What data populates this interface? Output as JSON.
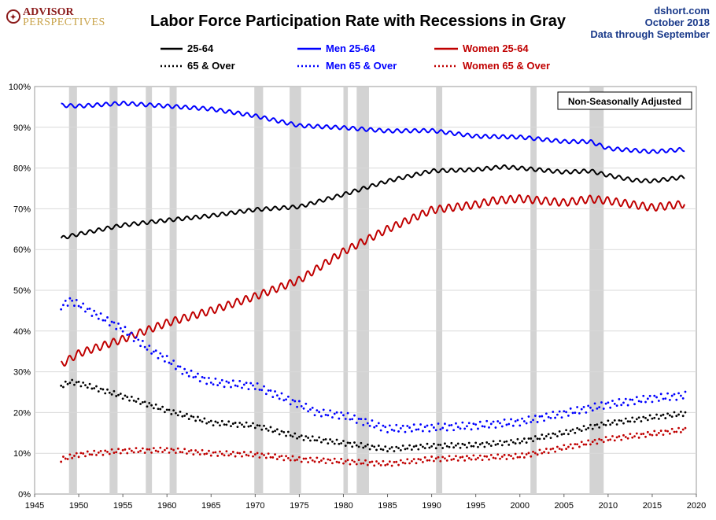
{
  "logo": {
    "line1": "ADVISOR",
    "line2": "PERSPECTIVES"
  },
  "header": {
    "title": "Labor Force Participation Rate with Recessions in Gray",
    "source_line1": "dshort.com",
    "source_line2": "October 2018",
    "source_line3": "Data through  September"
  },
  "note": "Non-Seasonally Adjusted",
  "colors": {
    "black": "#000000",
    "blue": "#0000ff",
    "red": "#c00000",
    "recession": "#d3d3d3",
    "grid": "#d9d9d9"
  },
  "chart_data": {
    "type": "line",
    "xlim": [
      1945,
      2020
    ],
    "ylim": [
      0,
      100
    ],
    "x_ticks": [
      "1945",
      "1950",
      "1955",
      "1960",
      "1965",
      "1970",
      "1975",
      "1980",
      "1985",
      "1990",
      "1995",
      "2000",
      "2005",
      "2010",
      "2015",
      "2020"
    ],
    "y_ticks": [
      "0%",
      "10%",
      "20%",
      "30%",
      "40%",
      "50%",
      "60%",
      "70%",
      "80%",
      "90%",
      "100%"
    ],
    "grid": true,
    "legend_position": "top",
    "recessions": [
      [
        1948.9,
        1949.8
      ],
      [
        1953.5,
        1954.4
      ],
      [
        1957.6,
        1958.3
      ],
      [
        1960.3,
        1961.1
      ],
      [
        1969.9,
        1970.9
      ],
      [
        1973.9,
        1975.2
      ],
      [
        1980.0,
        1980.5
      ],
      [
        1981.5,
        1982.9
      ],
      [
        1990.5,
        1991.2
      ],
      [
        2001.2,
        2001.9
      ],
      [
        2007.9,
        2009.5
      ]
    ],
    "series": [
      {
        "name": "25-64",
        "color": "#000000",
        "style": "solid",
        "points": [
          [
            1948,
            62.8
          ],
          [
            1950,
            63.8
          ],
          [
            1955,
            66
          ],
          [
            1960,
            67.2
          ],
          [
            1965,
            68.3
          ],
          [
            1970,
            69.8
          ],
          [
            1975,
            70.5
          ],
          [
            1980,
            73.5
          ],
          [
            1985,
            76.8
          ],
          [
            1990,
            79.3
          ],
          [
            1995,
            79.6
          ],
          [
            1998,
            80.3
          ],
          [
            2000,
            80
          ],
          [
            2005,
            79
          ],
          [
            2008,
            79.3
          ],
          [
            2010,
            78.2
          ],
          [
            2013,
            77
          ],
          [
            2015,
            76.8
          ],
          [
            2018.7,
            77.8
          ]
        ]
      },
      {
        "name": "Men 25-64",
        "color": "#0000ff",
        "style": "solid",
        "points": [
          [
            1948,
            95.4
          ],
          [
            1950,
            95.2
          ],
          [
            1955,
            95.9
          ],
          [
            1960,
            95.2
          ],
          [
            1965,
            94.5
          ],
          [
            1970,
            92.8
          ],
          [
            1975,
            90.4
          ],
          [
            1980,
            89.9
          ],
          [
            1985,
            89.1
          ],
          [
            1990,
            89.2
          ],
          [
            1995,
            87.8
          ],
          [
            2000,
            87.6
          ],
          [
            2005,
            86.5
          ],
          [
            2008,
            86.5
          ],
          [
            2010,
            84.8
          ],
          [
            2015,
            84
          ],
          [
            2018.7,
            84.6
          ]
        ]
      },
      {
        "name": "Women 25-64",
        "color": "#c00000",
        "style": "solid",
        "points": [
          [
            1948,
            31.8
          ],
          [
            1950,
            34.5
          ],
          [
            1955,
            38
          ],
          [
            1960,
            42
          ],
          [
            1965,
            45
          ],
          [
            1970,
            48.5
          ],
          [
            1975,
            52.5
          ],
          [
            1980,
            59.5
          ],
          [
            1985,
            65
          ],
          [
            1990,
            69.7
          ],
          [
            1995,
            71
          ],
          [
            1997,
            72
          ],
          [
            2000,
            72.5
          ],
          [
            2005,
            71.5
          ],
          [
            2008,
            72.4
          ],
          [
            2010,
            72
          ],
          [
            2015,
            70.3
          ],
          [
            2018.7,
            71.2
          ]
        ]
      },
      {
        "name": "65 & Over",
        "color": "#000000",
        "style": "dotted",
        "points": [
          [
            1948,
            26.5
          ],
          [
            1949,
            27.5
          ],
          [
            1950,
            27.2
          ],
          [
            1955,
            24
          ],
          [
            1960,
            20.5
          ],
          [
            1965,
            17.5
          ],
          [
            1970,
            16.8
          ],
          [
            1975,
            14
          ],
          [
            1980,
            12.5
          ],
          [
            1985,
            11
          ],
          [
            1990,
            11.8
          ],
          [
            1995,
            12
          ],
          [
            2000,
            12.9
          ],
          [
            2005,
            15
          ],
          [
            2010,
            17.4
          ],
          [
            2015,
            18.8
          ],
          [
            2018.7,
            19.8
          ]
        ]
      },
      {
        "name": "Men 65 & Over",
        "color": "#0000ff",
        "style": "dotted",
        "points": [
          [
            1948,
            46
          ],
          [
            1949,
            47.5
          ],
          [
            1950,
            46.5
          ],
          [
            1952,
            44
          ],
          [
            1955,
            40.5
          ],
          [
            1958,
            35.5
          ],
          [
            1960,
            33
          ],
          [
            1962,
            30
          ],
          [
            1965,
            27.5
          ],
          [
            1970,
            26.5
          ],
          [
            1975,
            22
          ],
          [
            1977,
            20
          ],
          [
            1980,
            19.3
          ],
          [
            1985,
            16
          ],
          [
            1990,
            16.3
          ],
          [
            1995,
            16.8
          ],
          [
            2000,
            17.7
          ],
          [
            2005,
            19.8
          ],
          [
            2010,
            22
          ],
          [
            2015,
            23.5
          ],
          [
            2018.7,
            24.2
          ]
        ]
      },
      {
        "name": "Women 65 & Over",
        "color": "#c00000",
        "style": "dotted",
        "points": [
          [
            1948,
            8.5
          ],
          [
            1950,
            9.7
          ],
          [
            1955,
            10.6
          ],
          [
            1960,
            10.8
          ],
          [
            1965,
            10
          ],
          [
            1970,
            9.7
          ],
          [
            1975,
            8.5
          ],
          [
            1980,
            8
          ],
          [
            1985,
            7.4
          ],
          [
            1990,
            8.6
          ],
          [
            1995,
            8.9
          ],
          [
            2000,
            9.3
          ],
          [
            2005,
            11.4
          ],
          [
            2010,
            13.5
          ],
          [
            2015,
            14.8
          ],
          [
            2018.7,
            15.8
          ]
        ]
      }
    ]
  }
}
